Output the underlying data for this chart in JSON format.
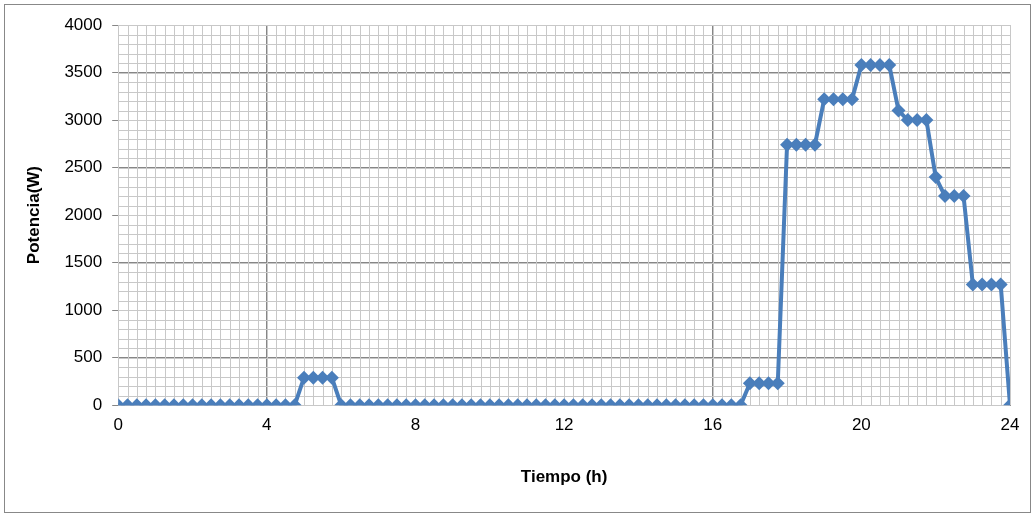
{
  "chart_data": {
    "type": "line",
    "xlabel": "Tiempo (h)",
    "ylabel": "Potencia(W)",
    "x": [
      0,
      0.25,
      0.5,
      0.75,
      1,
      1.25,
      1.5,
      1.75,
      2,
      2.25,
      2.5,
      2.75,
      3,
      3.25,
      3.5,
      3.75,
      4,
      4.25,
      4.5,
      4.75,
      5,
      5.25,
      5.5,
      5.75,
      6,
      6.25,
      6.5,
      6.75,
      7,
      7.25,
      7.5,
      7.75,
      8,
      8.25,
      8.5,
      8.75,
      9,
      9.25,
      9.5,
      9.75,
      10,
      10.25,
      10.5,
      10.75,
      11,
      11.25,
      11.5,
      11.75,
      12,
      12.25,
      12.5,
      12.75,
      13,
      13.25,
      13.5,
      13.75,
      14,
      14.25,
      14.5,
      14.75,
      15,
      15.25,
      15.5,
      15.75,
      16,
      16.25,
      16.5,
      16.75,
      17,
      17.25,
      17.5,
      17.75,
      18,
      18.25,
      18.5,
      18.75,
      19,
      19.25,
      19.5,
      19.75,
      20,
      20.25,
      20.5,
      20.75,
      21,
      21.25,
      21.5,
      21.75,
      22,
      22.25,
      22.5,
      22.75,
      23,
      23.25,
      23.5,
      23.75,
      24
    ],
    "series": [
      {
        "color": "#4a7ebb",
        "values": [
          0,
          0,
          0,
          0,
          0,
          0,
          0,
          0,
          0,
          0,
          0,
          0,
          0,
          0,
          0,
          0,
          0,
          0,
          0,
          0,
          290,
          290,
          290,
          290,
          0,
          0,
          0,
          0,
          0,
          0,
          0,
          0,
          0,
          0,
          0,
          0,
          0,
          0,
          0,
          0,
          0,
          0,
          0,
          0,
          0,
          0,
          0,
          0,
          0,
          0,
          0,
          0,
          0,
          0,
          0,
          0,
          0,
          0,
          0,
          0,
          0,
          0,
          0,
          0,
          0,
          0,
          0,
          0,
          230,
          230,
          230,
          230,
          2740,
          2740,
          2740,
          2740,
          3220,
          3220,
          3220,
          3220,
          3580,
          3580,
          3580,
          3580,
          3100,
          3000,
          3000,
          3000,
          2400,
          2200,
          2200,
          2200,
          1270,
          1270,
          1270,
          1270,
          0
        ]
      }
    ],
    "xlim": [
      0,
      24
    ],
    "xticks": [
      0,
      4,
      8,
      12,
      16,
      20,
      24
    ],
    "ylim": [
      0,
      4000
    ],
    "yticks": [
      0,
      500,
      1000,
      1500,
      2000,
      2500,
      3000,
      3500,
      4000
    ],
    "grid": true,
    "legend": false,
    "marker": "diamond",
    "line_style": "solid"
  }
}
